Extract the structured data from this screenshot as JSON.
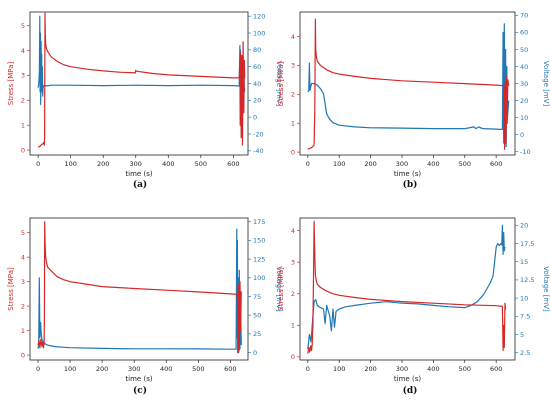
{
  "colors": {
    "stress": "#d62728",
    "voltage": "#1f77b4",
    "axis": "#222222"
  },
  "chart_data": [
    {
      "type": "line",
      "panel": "a",
      "caption": "(a)",
      "xlabel": "time (s)",
      "ylabel_left": "Stress [MPa]",
      "ylabel_right": "Voltage [mV]",
      "xlim": [
        -25,
        645
      ],
      "ylim_left": [
        -0.2,
        5.55
      ],
      "ylim_right": [
        -45,
        125
      ],
      "xticks": [
        0,
        100,
        200,
        300,
        400,
        500,
        600
      ],
      "yticks_left": [
        0,
        1,
        2,
        3,
        4,
        5
      ],
      "yticks_right": [
        -40,
        -20,
        0,
        20,
        40,
        60,
        80,
        100,
        120
      ],
      "series": [
        {
          "axis": "left",
          "color": "stress",
          "x": [
            0,
            5,
            10,
            15,
            17,
            19,
            20,
            21,
            22,
            23,
            25,
            30,
            40,
            60,
            80,
            100,
            150,
            200,
            250,
            299,
            300,
            302,
            350,
            400,
            500,
            600,
            618,
            620,
            621,
            622,
            624,
            626,
            628,
            630,
            632,
            634,
            635
          ],
          "values": [
            0.12,
            0.14,
            0.22,
            0.25,
            0.3,
            0.2,
            0.5,
            5.5,
            4.6,
            4.3,
            4.1,
            3.95,
            3.75,
            3.55,
            3.42,
            3.35,
            3.25,
            3.18,
            3.13,
            3.1,
            3.2,
            3.17,
            3.08,
            3.02,
            2.96,
            2.9,
            2.9,
            3.6,
            1.0,
            3.9,
            0.5,
            3.8,
            0.2,
            4.35,
            1.5,
            3.6,
            2.9
          ]
        },
        {
          "axis": "right",
          "color": "voltage",
          "x": [
            0,
            2,
            4,
            5,
            6,
            7,
            8,
            9,
            10,
            11,
            12,
            13,
            14,
            15,
            17,
            20,
            25,
            40,
            100,
            200,
            300,
            400,
            500,
            600,
            618,
            620,
            621,
            622,
            623,
            624,
            626,
            628,
            630,
            632,
            634,
            635
          ],
          "values": [
            35,
            40,
            55,
            120,
            30,
            100,
            15,
            90,
            40,
            75,
            30,
            60,
            25,
            35,
            37,
            38,
            37,
            38,
            38,
            37.5,
            38,
            37.5,
            38,
            37.5,
            37,
            85,
            10,
            80,
            5,
            60,
            0,
            70,
            20,
            55,
            30,
            35
          ]
        }
      ]
    },
    {
      "type": "line",
      "panel": "b",
      "caption": "(b)",
      "xlabel": "time (s)",
      "ylabel_left": "Stress [MPa]",
      "ylabel_right": "Voltage [mV]",
      "xlim": [
        -25,
        660
      ],
      "ylim_left": [
        -0.1,
        4.85
      ],
      "ylim_right": [
        -12,
        72
      ],
      "xticks": [
        0,
        100,
        200,
        300,
        400,
        500,
        600
      ],
      "yticks_left": [
        0,
        1,
        2,
        3,
        4
      ],
      "yticks_right": [
        -10,
        0,
        10,
        20,
        30,
        40,
        50,
        60,
        70
      ],
      "series": [
        {
          "axis": "left",
          "color": "stress",
          "x": [
            0,
            5,
            10,
            15,
            20,
            22,
            24,
            25,
            27,
            30,
            40,
            60,
            80,
            100,
            150,
            200,
            300,
            400,
            500,
            600,
            625,
            627,
            629,
            631,
            633,
            635,
            637,
            640
          ],
          "values": [
            0.1,
            0.12,
            0.15,
            0.18,
            0.25,
            1.5,
            4.6,
            3.6,
            3.3,
            3.15,
            3.0,
            2.85,
            2.75,
            2.7,
            2.62,
            2.55,
            2.47,
            2.42,
            2.37,
            2.32,
            2.3,
            0.1,
            2.4,
            0.3,
            2.6,
            1.0,
            2.5,
            2.3
          ]
        },
        {
          "axis": "right",
          "color": "voltage",
          "x": [
            0,
            3,
            5,
            7,
            9,
            12,
            20,
            30,
            40,
            50,
            55,
            60,
            70,
            80,
            100,
            150,
            200,
            300,
            400,
            500,
            530,
            535,
            545,
            555,
            560,
            600,
            620,
            622,
            624,
            626,
            628,
            630,
            632,
            634,
            636,
            640
          ],
          "values": [
            25,
            26,
            42,
            26,
            28,
            30,
            30,
            29,
            27,
            24,
            18,
            12,
            9,
            7,
            5.5,
            4.5,
            4.0,
            3.8,
            3.5,
            3.5,
            4.5,
            3.5,
            4.5,
            3.6,
            3.5,
            3.2,
            3.0,
            60,
            -5,
            65,
            5,
            50,
            -7,
            40,
            10,
            20
          ]
        }
      ]
    },
    {
      "type": "line",
      "panel": "c",
      "caption": "(c)",
      "xlabel": "time (s)",
      "ylabel_left": "Stress [MPa]",
      "ylabel_right": "Voltage [mV]",
      "xlim": [
        -25,
        655
      ],
      "ylim_left": [
        -0.2,
        5.6
      ],
      "ylim_right": [
        -10,
        180
      ],
      "xticks": [
        0,
        100,
        200,
        300,
        400,
        500,
        600
      ],
      "yticks_left": [
        0,
        1,
        2,
        3,
        4,
        5
      ],
      "yticks_right": [
        0,
        25,
        50,
        75,
        100,
        125,
        150,
        175
      ],
      "series": [
        {
          "axis": "left",
          "color": "stress",
          "x": [
            0,
            3,
            6,
            9,
            12,
            15,
            17,
            19,
            20,
            21,
            22,
            24,
            27,
            30,
            40,
            60,
            80,
            100,
            150,
            200,
            300,
            400,
            500,
            600,
            622,
            624,
            626,
            628,
            630,
            632,
            634
          ],
          "values": [
            0.4,
            0.6,
            0.3,
            0.65,
            0.35,
            0.55,
            0.3,
            0.5,
            1.5,
            5.45,
            4.5,
            4.0,
            3.75,
            3.6,
            3.45,
            3.2,
            3.08,
            3.0,
            2.9,
            2.8,
            2.72,
            2.65,
            2.58,
            2.5,
            2.48,
            0.1,
            2.9,
            0.2,
            3.0,
            1.0,
            2.6
          ]
        },
        {
          "axis": "right",
          "color": "voltage",
          "x": [
            0,
            2,
            4,
            6,
            8,
            10,
            12,
            15,
            20,
            30,
            50,
            80,
            100,
            200,
            300,
            400,
            500,
            600,
            618,
            620,
            621,
            622,
            623,
            624,
            626,
            628,
            630,
            632,
            634
          ],
          "values": [
            5,
            10,
            100,
            20,
            40,
            25,
            18,
            15,
            12,
            10,
            8,
            7,
            6.5,
            5.5,
            5,
            5,
            4.8,
            4.5,
            4.5,
            165,
            20,
            150,
            0,
            100,
            0,
            110,
            5,
            60,
            10
          ]
        }
      ]
    },
    {
      "type": "line",
      "panel": "d",
      "caption": "(d)",
      "xlabel": "time (s)",
      "ylabel_left": "Stress [MPa]",
      "ylabel_right": "Voltage [mV]",
      "xlim": [
        -25,
        660
      ],
      "ylim_left": [
        -0.1,
        4.4
      ],
      "ylim_right": [
        1.5,
        21
      ],
      "xticks": [
        0,
        100,
        200,
        300,
        400,
        500,
        600
      ],
      "yticks_left": [
        0,
        1,
        2,
        3,
        4
      ],
      "yticks_right": [
        2.5,
        5.0,
        7.5,
        10.0,
        12.5,
        15.0,
        17.5,
        20.0
      ],
      "series": [
        {
          "axis": "left",
          "color": "stress",
          "x": [
            0,
            3,
            6,
            9,
            12,
            14,
            16,
            18,
            20,
            22,
            24,
            27,
            30,
            40,
            60,
            80,
            100,
            150,
            200,
            300,
            400,
            500,
            600,
            620,
            622,
            624,
            626,
            628,
            630
          ],
          "values": [
            0.1,
            0.3,
            0.15,
            0.35,
            0.2,
            0.4,
            1.0,
            2.5,
            4.3,
            3.2,
            2.6,
            2.4,
            2.3,
            2.2,
            2.08,
            2.0,
            1.95,
            1.88,
            1.82,
            1.75,
            1.7,
            1.65,
            1.62,
            1.6,
            0.2,
            1.0,
            0.3,
            1.7,
            1.5
          ]
        },
        {
          "axis": "right",
          "color": "voltage",
          "x": [
            0,
            5,
            10,
            15,
            20,
            25,
            30,
            40,
            50,
            55,
            60,
            70,
            75,
            80,
            85,
            90,
            100,
            120,
            150,
            200,
            250,
            300,
            350,
            400,
            450,
            500,
            520,
            540,
            560,
            580,
            590,
            600,
            605,
            610,
            615,
            618,
            620,
            622,
            624,
            626,
            628
          ],
          "values": [
            3.0,
            5.0,
            4.0,
            7.0,
            9.5,
            9.8,
            9.0,
            8.7,
            8.5,
            6.5,
            9.0,
            7.5,
            5.5,
            8.5,
            6.0,
            8.2,
            8.5,
            8.8,
            9.0,
            9.3,
            9.5,
            9.3,
            9.2,
            9.0,
            8.8,
            8.7,
            9.0,
            9.5,
            10.5,
            12.0,
            13.0,
            17.0,
            17.5,
            17.2,
            17.5,
            17.3,
            20.0,
            16.0,
            19.0,
            16.5,
            17.0
          ]
        }
      ]
    }
  ]
}
